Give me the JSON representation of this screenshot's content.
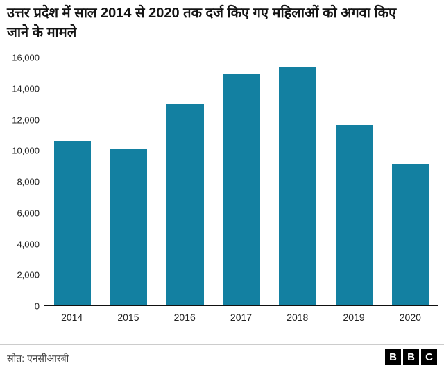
{
  "title": "उत्तर प्रदेश में साल 2014 से 2020 तक दर्ज किए गए महिलाओं को अगवा किए जाने के मामले",
  "chart_data": {
    "type": "bar",
    "title": "उत्तर प्रदेश में साल 2014 से 2020 तक दर्ज किए गए महिलाओं को अगवा किए जाने के मामले",
    "categories": [
      "2014",
      "2015",
      "2016",
      "2017",
      "2018",
      "2019",
      "2020"
    ],
    "values": [
      10626,
      10135,
      12994,
      14974,
      15381,
      11649,
      9123
    ],
    "xlabel": "",
    "ylabel": "",
    "ylim": [
      0,
      16000
    ],
    "grid": false,
    "legend": false,
    "bar_color": "#1380A1",
    "yticks": [
      {
        "value": 0,
        "label": "0"
      },
      {
        "value": 2000,
        "label": "2,000"
      },
      {
        "value": 4000,
        "label": "4,000"
      },
      {
        "value": 6000,
        "label": "6,000"
      },
      {
        "value": 8000,
        "label": "8,000"
      },
      {
        "value": 10000,
        "label": "10,000"
      },
      {
        "value": 12000,
        "label": "12,000"
      },
      {
        "value": 14000,
        "label": "14,000"
      },
      {
        "value": 16000,
        "label": "16,000"
      }
    ]
  },
  "footer": {
    "source": "स्रोत: एनसीआरबी",
    "logo_letters": [
      "B",
      "B",
      "C"
    ]
  }
}
